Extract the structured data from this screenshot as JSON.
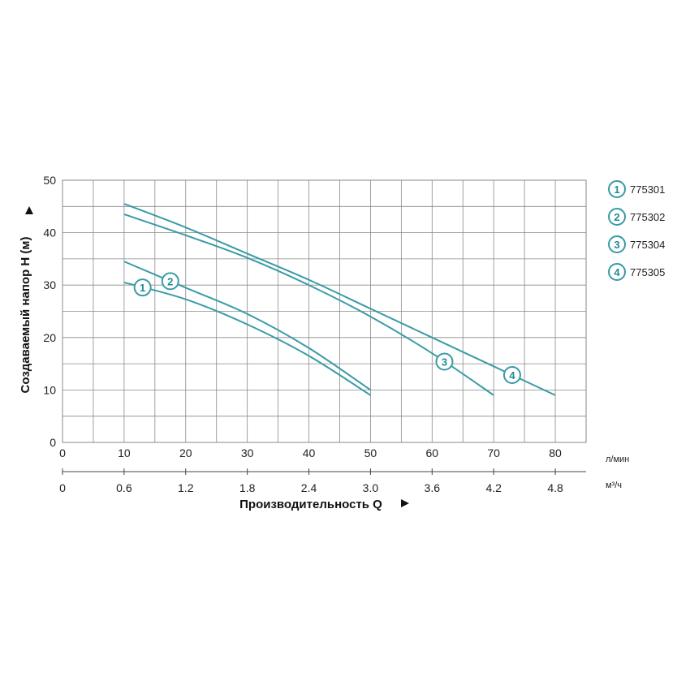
{
  "chart_data": {
    "type": "line",
    "ylabel": "Создаваемый напор Н (м)",
    "xlabel": "Производительность Q",
    "x_unit_primary": "л/мин",
    "x_unit_secondary": "м³/ч",
    "ylim": [
      0,
      50
    ],
    "xlim": [
      0,
      85
    ],
    "grid": true,
    "legend_position": "right",
    "line_color": "#3a9ba6",
    "y_ticks": [
      "0",
      "10",
      "20",
      "30",
      "40",
      "50"
    ],
    "x_ticks_primary": [
      "0",
      "10",
      "20",
      "30",
      "40",
      "50",
      "60",
      "70",
      "80"
    ],
    "x_ticks_secondary": [
      "0",
      "0.6",
      "1.2",
      "1.8",
      "2.4",
      "3.0",
      "3.6",
      "4.2",
      "4.8"
    ],
    "series": [
      {
        "name": "775301",
        "marker": "1",
        "marker_x": 13,
        "points": [
          [
            10,
            30.5
          ],
          [
            20,
            27.3
          ],
          [
            30,
            22.5
          ],
          [
            40,
            16.5
          ],
          [
            50,
            9
          ]
        ]
      },
      {
        "name": "775302",
        "marker": "2",
        "marker_x": 17.5,
        "points": [
          [
            10,
            34.5
          ],
          [
            20,
            29.5
          ],
          [
            30,
            24.5
          ],
          [
            40,
            18
          ],
          [
            50,
            10
          ]
        ]
      },
      {
        "name": "775304",
        "marker": "3",
        "marker_x": 62,
        "points": [
          [
            10,
            43.5
          ],
          [
            20,
            39.5
          ],
          [
            30,
            35.2
          ],
          [
            40,
            30
          ],
          [
            50,
            24
          ],
          [
            60,
            17
          ],
          [
            70,
            9
          ]
        ]
      },
      {
        "name": "775305",
        "marker": "4",
        "marker_x": 73,
        "points": [
          [
            10,
            45.5
          ],
          [
            20,
            41
          ],
          [
            30,
            36
          ],
          [
            40,
            31
          ],
          [
            50,
            25.5
          ],
          [
            60,
            20
          ],
          [
            70,
            14.5
          ],
          [
            80,
            9
          ]
        ]
      }
    ]
  }
}
